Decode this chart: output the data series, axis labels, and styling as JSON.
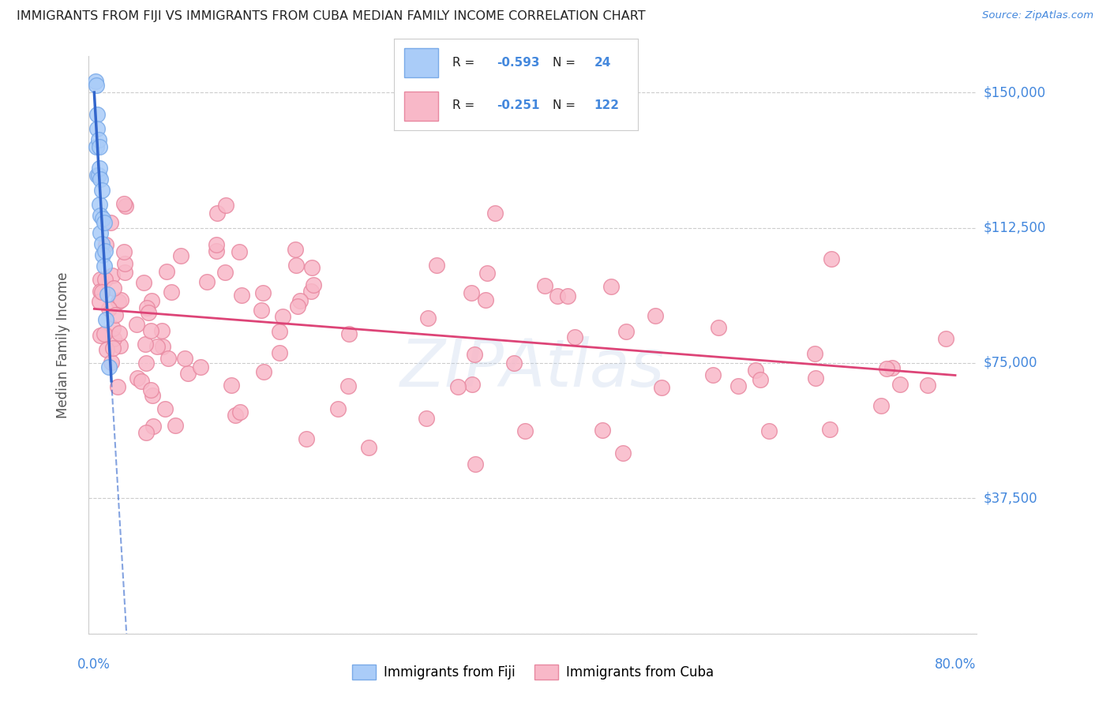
{
  "title": "IMMIGRANTS FROM FIJI VS IMMIGRANTS FROM CUBA MEDIAN FAMILY INCOME CORRELATION CHART",
  "source": "Source: ZipAtlas.com",
  "ylabel": "Median Family Income",
  "xlabel_start": "0.0%",
  "xlabel_end": "80.0%",
  "ytick_values": [
    0,
    37500,
    75000,
    112500,
    150000
  ],
  "ytick_labels": [
    "",
    "$37,500",
    "$75,000",
    "$112,500",
    "$150,000"
  ],
  "ylim": [
    0,
    160000
  ],
  "xlim": [
    -0.005,
    0.82
  ],
  "fiji_R": "-0.593",
  "fiji_N": "24",
  "cuba_R": "-0.251",
  "cuba_N": "122",
  "fiji_color": "#aaccf8",
  "fiji_edge_color": "#7aaae8",
  "cuba_color": "#f8b8c8",
  "cuba_edge_color": "#e888a0",
  "fiji_line_color": "#3366cc",
  "cuba_line_color": "#dd4477",
  "background_color": "#ffffff",
  "grid_color": "#cccccc",
  "axis_color": "#4488dd",
  "title_color": "#222222",
  "watermark": "ZIPAtlas",
  "fiji_slope": -5000000,
  "fiji_intercept": 150000,
  "cuba_slope": -23000,
  "cuba_intercept": 90000,
  "legend_R_color": "#222222",
  "legend_N_color": "#4488dd"
}
